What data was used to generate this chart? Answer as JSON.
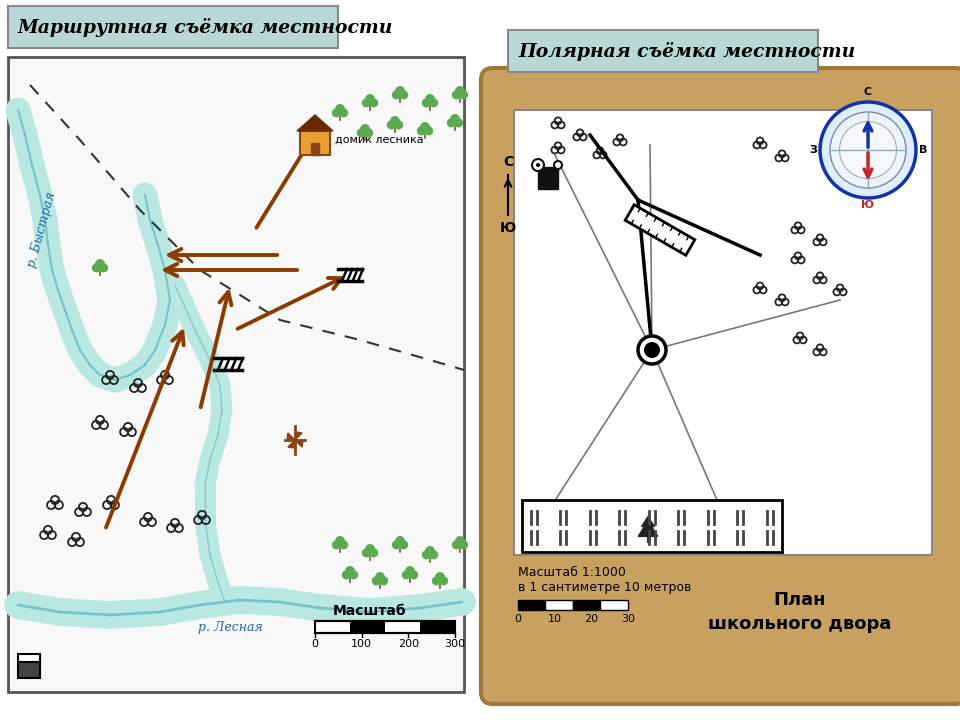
{
  "title_left": "Маршрутная съёмка местности",
  "title_right": "Полярная съёмка местности",
  "title_bg": "#b8d8d8",
  "title_border": "#777777",
  "scale_label": "Масштаб",
  "scale_ticks": [
    "0",
    "100",
    "200",
    "300"
  ],
  "right_scale_label": "Масштаб 1:1000",
  "right_scale_label2": "в 1 сантиметре 10 метров",
  "right_scale_ticks": [
    "0",
    "10",
    "20",
    "30"
  ],
  "right_bottom_label1": "План",
  "right_bottom_label2": "школьного двора",
  "river1_label": "р. Быстрая",
  "river2_label": "р. Лесная",
  "house_label": "домик лесника",
  "arrow_color": "#8B3A00",
  "river_fill": "#b8e8e0",
  "river_line": "#5ab5c8",
  "tree_color": "#5aaa50",
  "map_bg": "#f8f8f8",
  "wood_color": "#c8a060",
  "wood_dark": "#a07838"
}
